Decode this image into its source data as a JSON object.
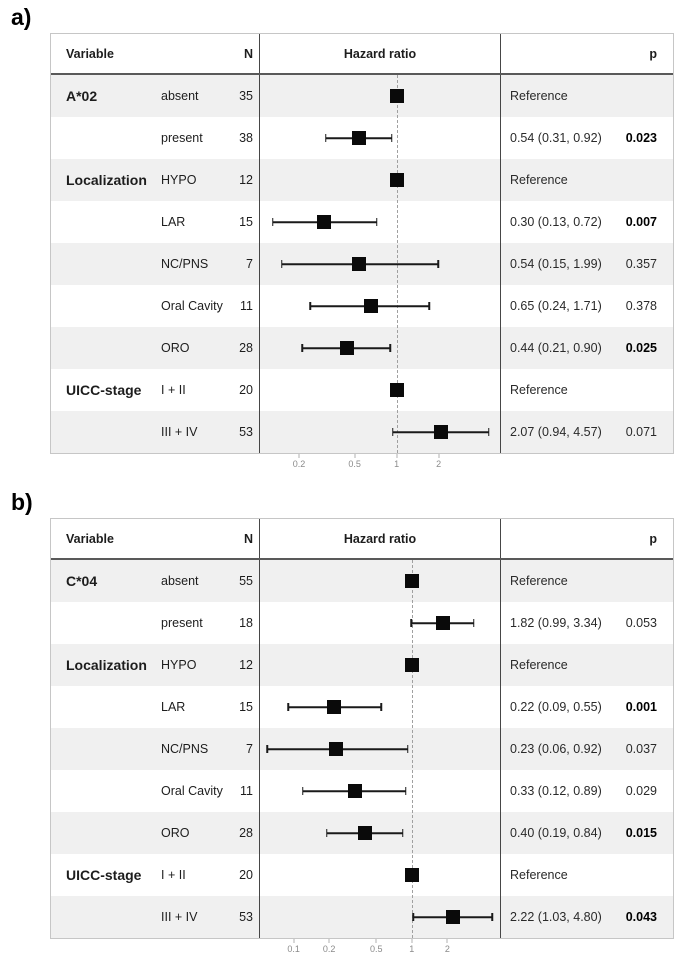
{
  "chart_data": [
    {
      "type": "scatter",
      "subtype": "forest-plot",
      "label": "a)",
      "header": {
        "variable": "Variable",
        "n": "N",
        "hazard_ratio": "Hazard ratio",
        "p": "p"
      },
      "axis": {
        "scale": "log",
        "min": 0.105,
        "max": 5.5,
        "ticks": [
          0.2,
          0.5,
          1,
          2
        ],
        "reference_line": 1
      },
      "rows": [
        {
          "group": "A*02",
          "level": "absent",
          "n": "35",
          "est": 1.0,
          "lo": null,
          "hi": null,
          "hr_text": "Reference",
          "p": "",
          "p_bold": false,
          "shaded": true
        },
        {
          "group": "",
          "level": "present",
          "n": "38",
          "est": 0.54,
          "lo": 0.31,
          "hi": 0.92,
          "hr_text": "0.54 (0.31, 0.92)",
          "p": "0.023",
          "p_bold": true,
          "shaded": false
        },
        {
          "group": "Localization",
          "level": "HYPO",
          "n": "12",
          "est": 1.0,
          "lo": null,
          "hi": null,
          "hr_text": "Reference",
          "p": "",
          "p_bold": false,
          "shaded": true
        },
        {
          "group": "",
          "level": "LAR",
          "n": "15",
          "est": 0.3,
          "lo": 0.13,
          "hi": 0.72,
          "hr_text": "0.30 (0.13, 0.72)",
          "p": "0.007",
          "p_bold": true,
          "shaded": false
        },
        {
          "group": "",
          "level": "NC/PNS",
          "n": "7",
          "est": 0.54,
          "lo": 0.15,
          "hi": 1.99,
          "hr_text": "0.54 (0.15, 1.99)",
          "p": "0.357",
          "p_bold": false,
          "shaded": true
        },
        {
          "group": "",
          "level": "Oral Cavity",
          "n": "11",
          "est": 0.65,
          "lo": 0.24,
          "hi": 1.71,
          "hr_text": "0.65 (0.24, 1.71)",
          "p": "0.378",
          "p_bold": false,
          "shaded": false
        },
        {
          "group": "",
          "level": "ORO",
          "n": "28",
          "est": 0.44,
          "lo": 0.21,
          "hi": 0.9,
          "hr_text": "0.44 (0.21, 0.90)",
          "p": "0.025",
          "p_bold": true,
          "shaded": true
        },
        {
          "group": "UICC-stage",
          "level": "I + II",
          "n": "20",
          "est": 1.0,
          "lo": null,
          "hi": null,
          "hr_text": "Reference",
          "p": "",
          "p_bold": false,
          "shaded": false
        },
        {
          "group": "",
          "level": "III + IV",
          "n": "53",
          "est": 2.07,
          "lo": 0.94,
          "hi": 4.57,
          "hr_text": "2.07 (0.94, 4.57)",
          "p": "0.071",
          "p_bold": false,
          "shaded": true
        }
      ]
    },
    {
      "type": "scatter",
      "subtype": "forest-plot",
      "label": "b)",
      "header": {
        "variable": "Variable",
        "n": "N",
        "hazard_ratio": "Hazard ratio",
        "p": "p"
      },
      "axis": {
        "scale": "log",
        "min": 0.052,
        "max": 5.57,
        "ticks": [
          0.1,
          0.2,
          0.5,
          1,
          2
        ],
        "reference_line": 1
      },
      "rows": [
        {
          "group": "C*04",
          "level": "absent",
          "n": "55",
          "est": 1.0,
          "lo": null,
          "hi": null,
          "hr_text": "Reference",
          "p": "",
          "p_bold": false,
          "shaded": true
        },
        {
          "group": "",
          "level": "present",
          "n": "18",
          "est": 1.82,
          "lo": 0.99,
          "hi": 3.34,
          "hr_text": "1.82 (0.99, 3.34)",
          "p": "0.053",
          "p_bold": false,
          "shaded": false
        },
        {
          "group": "Localization",
          "level": "HYPO",
          "n": "12",
          "est": 1.0,
          "lo": null,
          "hi": null,
          "hr_text": "Reference",
          "p": "",
          "p_bold": false,
          "shaded": true
        },
        {
          "group": "",
          "level": "LAR",
          "n": "15",
          "est": 0.22,
          "lo": 0.09,
          "hi": 0.55,
          "hr_text": "0.22 (0.09, 0.55)",
          "p": "0.001",
          "p_bold": true,
          "shaded": false
        },
        {
          "group": "",
          "level": "NC/PNS",
          "n": "7",
          "est": 0.23,
          "lo": 0.06,
          "hi": 0.92,
          "hr_text": "0.23 (0.06, 0.92)",
          "p": "0.037",
          "p_bold": false,
          "shaded": true
        },
        {
          "group": "",
          "level": "Oral Cavity",
          "n": "11",
          "est": 0.33,
          "lo": 0.12,
          "hi": 0.89,
          "hr_text": "0.33 (0.12, 0.89)",
          "p": "0.029",
          "p_bold": false,
          "shaded": false
        },
        {
          "group": "",
          "level": "ORO",
          "n": "28",
          "est": 0.4,
          "lo": 0.19,
          "hi": 0.84,
          "hr_text": "0.40 (0.19, 0.84)",
          "p": "0.015",
          "p_bold": true,
          "shaded": true
        },
        {
          "group": "UICC-stage",
          "level": "I + II",
          "n": "20",
          "est": 1.0,
          "lo": null,
          "hi": null,
          "hr_text": "Reference",
          "p": "",
          "p_bold": false,
          "shaded": false
        },
        {
          "group": "",
          "level": "III + IV",
          "n": "53",
          "est": 2.22,
          "lo": 1.03,
          "hi": 4.8,
          "hr_text": "2.22 (1.03, 4.80)",
          "p": "0.043",
          "p_bold": true,
          "shaded": true
        }
      ]
    }
  ],
  "colors": {
    "row_shade": "#f0f0f0",
    "outer_border": "#c6c6c6",
    "column_divider": "#464646",
    "header_underline": "#595959",
    "marker": "#0a0a0a",
    "reference_dash": "#a0a0a0",
    "tick_label": "#8b8b8b"
  }
}
